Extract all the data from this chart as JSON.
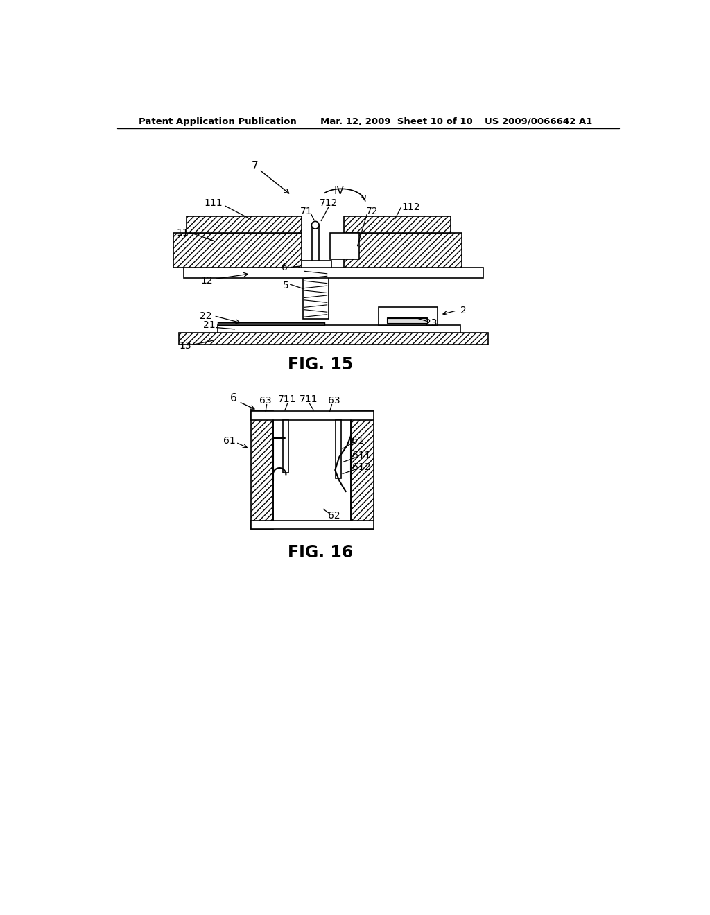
{
  "header_left": "Patent Application Publication",
  "header_mid": "Mar. 12, 2009  Sheet 10 of 10",
  "header_right": "US 2009/0066642 A1",
  "fig15_title": "FIG. 15",
  "fig16_title": "FIG. 16",
  "bg_color": "#ffffff"
}
